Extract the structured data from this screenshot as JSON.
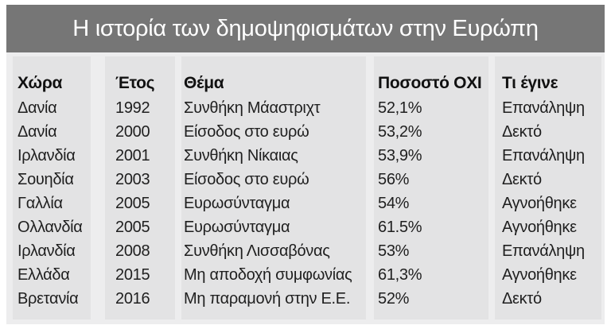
{
  "title": "Η ιστορία των δημοψηφισμάτων στην Ευρώπη",
  "columns": {
    "country": "Χώρα",
    "year": "Έτος",
    "topic": "Θέμα",
    "no_percent": "Ποσοστό ΟΧΙ",
    "outcome": "Τι έγινε"
  },
  "rows": [
    {
      "country": "Δανία",
      "year": "1992",
      "topic": "Συνθήκη Μάαστριχτ",
      "no_percent": "52,1%",
      "outcome": "Επανάληψη"
    },
    {
      "country": "Δανία",
      "year": "2000",
      "topic": "Είσοδος στο ευρώ",
      "no_percent": "53,2%",
      "outcome": "Δεκτό"
    },
    {
      "country": "Ιρλανδία",
      "year": "2001",
      "topic": "Συνθήκη Νίκαιας",
      "no_percent": "53,9%",
      "outcome": "Επανάληψη"
    },
    {
      "country": "Σουηδία",
      "year": "2003",
      "topic": "Είσοδος στο ευρώ",
      "no_percent": "56%",
      "outcome": "Δεκτό"
    },
    {
      "country": "Γαλλία",
      "year": "2005",
      "topic": "Ευρωσύνταγμα",
      "no_percent": "54%",
      "outcome": "Αγνοήθηκε"
    },
    {
      "country": "Ολλανδία",
      "year": "2005",
      "topic": "Ευρωσύνταγμα",
      "no_percent": "61.5%",
      "outcome": "Αγνοήθηκε"
    },
    {
      "country": "Ιρλανδία",
      "year": "2008",
      "topic": "Συνθήκη Λισσαβόνας",
      "no_percent": "53%",
      "outcome": "Επανάληψη"
    },
    {
      "country": "Ελλάδα",
      "year": "2015",
      "topic": "Μη αποδοχή συμφωνίας",
      "no_percent": "61,3%",
      "outcome": "Αγνοήθηκε"
    },
    {
      "country": "Βρετανία",
      "year": "2016",
      "topic": "Μη παραμονή στην Ε.Ε.",
      "no_percent": "52%",
      "outcome": "Δεκτό"
    }
  ],
  "colors": {
    "title_bar": "#767676",
    "title_text": "#ffffff",
    "panel": "#ededee",
    "column_shade": "#e3e3e4",
    "text": "#1f1f1f"
  }
}
